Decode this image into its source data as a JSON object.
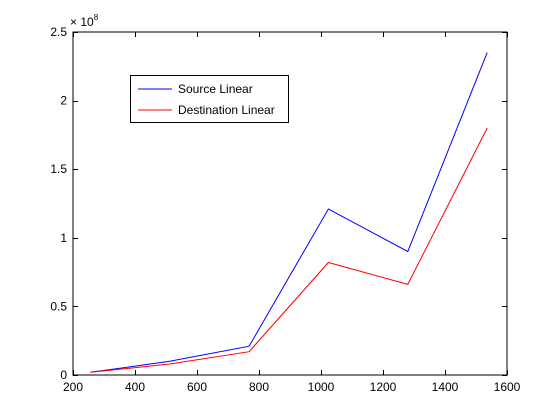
{
  "chart_data": {
    "type": "line",
    "title": "",
    "xlabel": "",
    "ylabel": "",
    "xlim": [
      200,
      1600
    ],
    "ylim": [
      0,
      250000000
    ],
    "x_ticks": [
      200,
      400,
      600,
      800,
      1000,
      1200,
      1400,
      1600
    ],
    "x_tick_labels": [
      "200",
      "400",
      "600",
      "800",
      "1000",
      "1200",
      "1400",
      "1600"
    ],
    "y_ticks": [
      0,
      50000000,
      100000000,
      150000000,
      200000000,
      250000000
    ],
    "y_tick_labels": [
      "0",
      "0.5",
      "1",
      "1.5",
      "2",
      "2.5"
    ],
    "y_exponent": {
      "base": "× 10",
      "power": "8"
    },
    "grid": false,
    "legend_position": "top-left",
    "x": [
      256,
      512,
      768,
      1024,
      1280,
      1536
    ],
    "series": [
      {
        "name": "Source Linear",
        "color": "#0000ff",
        "values": [
          2000000,
          10000000,
          21000000,
          121000000,
          90000000,
          235000000
        ]
      },
      {
        "name": "Destination Linear",
        "color": "#ff0000",
        "values": [
          2000000,
          8000000,
          17000000,
          82000000,
          66000000,
          180000000
        ]
      }
    ]
  }
}
